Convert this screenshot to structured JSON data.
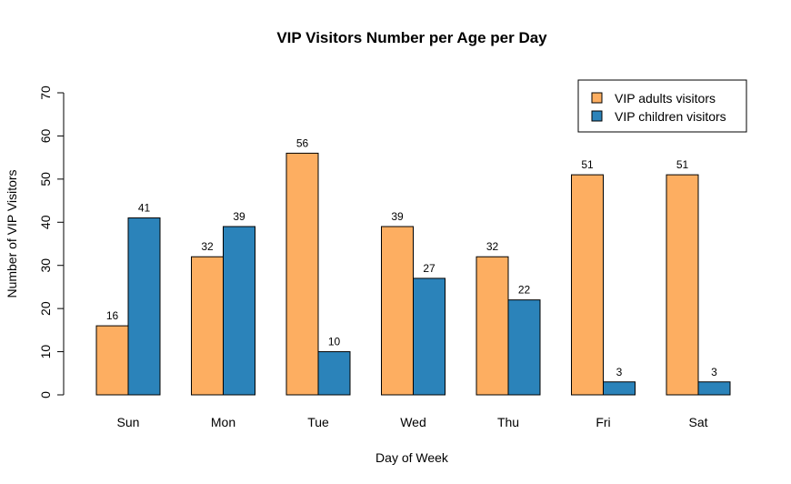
{
  "chart_data": {
    "type": "bar",
    "title": "VIP Visitors Number per Age per Day",
    "xlabel": "Day of Week",
    "ylabel": "Number of VIP Visitors",
    "ylim": [
      0,
      70
    ],
    "yticks": [
      0,
      10,
      20,
      30,
      40,
      50,
      60,
      70
    ],
    "categories": [
      "Sun",
      "Mon",
      "Tue",
      "Wed",
      "Thu",
      "Fri",
      "Sat"
    ],
    "series": [
      {
        "name": "VIP adults visitors",
        "color": "#fdae61",
        "values": [
          16,
          32,
          56,
          39,
          32,
          51,
          51
        ]
      },
      {
        "name": "VIP children visitors",
        "color": "#2b83ba",
        "values": [
          41,
          39,
          10,
          27,
          22,
          3,
          3
        ]
      }
    ],
    "legend_position": "top-right",
    "grid": false
  }
}
